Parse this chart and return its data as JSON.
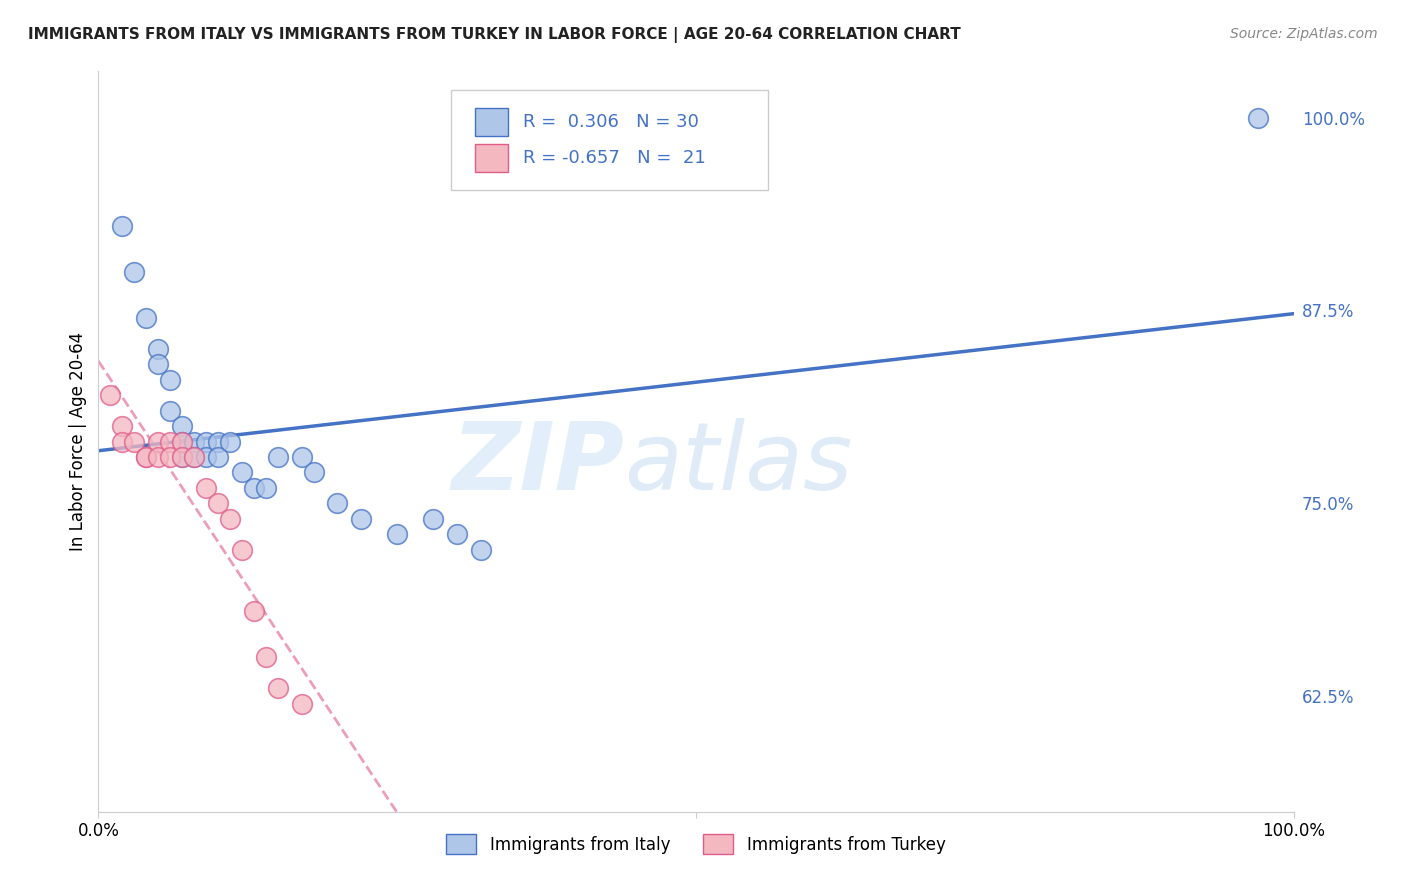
{
  "title": "IMMIGRANTS FROM ITALY VS IMMIGRANTS FROM TURKEY IN LABOR FORCE | AGE 20-64 CORRELATION CHART",
  "source": "Source: ZipAtlas.com",
  "ylabel": "In Labor Force | Age 20-64",
  "ytick_labels": [
    "62.5%",
    "75.0%",
    "87.5%",
    "100.0%"
  ],
  "ytick_values": [
    0.625,
    0.75,
    0.875,
    1.0
  ],
  "xlim": [
    0.0,
    1.0
  ],
  "ylim": [
    0.55,
    1.03
  ],
  "legend_italy_r": "0.306",
  "legend_italy_n": "30",
  "legend_turkey_r": "-0.657",
  "legend_turkey_n": "21",
  "italy_color": "#aec6e8",
  "turkey_color": "#f4b8c1",
  "italy_line_color": "#4472C4",
  "turkey_line_color": "#E05C8A",
  "italy_scatter": [
    [
      0.02,
      0.93
    ],
    [
      0.03,
      0.9
    ],
    [
      0.04,
      0.87
    ],
    [
      0.05,
      0.85
    ],
    [
      0.05,
      0.84
    ],
    [
      0.06,
      0.83
    ],
    [
      0.06,
      0.81
    ],
    [
      0.07,
      0.8
    ],
    [
      0.07,
      0.79
    ],
    [
      0.07,
      0.78
    ],
    [
      0.08,
      0.79
    ],
    [
      0.08,
      0.78
    ],
    [
      0.09,
      0.79
    ],
    [
      0.09,
      0.78
    ],
    [
      0.1,
      0.79
    ],
    [
      0.1,
      0.78
    ],
    [
      0.11,
      0.79
    ],
    [
      0.12,
      0.77
    ],
    [
      0.13,
      0.76
    ],
    [
      0.14,
      0.76
    ],
    [
      0.15,
      0.78
    ],
    [
      0.17,
      0.78
    ],
    [
      0.18,
      0.77
    ],
    [
      0.2,
      0.75
    ],
    [
      0.22,
      0.74
    ],
    [
      0.25,
      0.73
    ],
    [
      0.28,
      0.74
    ],
    [
      0.3,
      0.73
    ],
    [
      0.32,
      0.72
    ],
    [
      0.97,
      1.0
    ]
  ],
  "turkey_scatter": [
    [
      0.01,
      0.82
    ],
    [
      0.02,
      0.8
    ],
    [
      0.02,
      0.79
    ],
    [
      0.03,
      0.79
    ],
    [
      0.04,
      0.78
    ],
    [
      0.04,
      0.78
    ],
    [
      0.05,
      0.79
    ],
    [
      0.05,
      0.78
    ],
    [
      0.06,
      0.79
    ],
    [
      0.06,
      0.78
    ],
    [
      0.07,
      0.79
    ],
    [
      0.07,
      0.78
    ],
    [
      0.08,
      0.78
    ],
    [
      0.09,
      0.76
    ],
    [
      0.1,
      0.75
    ],
    [
      0.11,
      0.74
    ],
    [
      0.12,
      0.72
    ],
    [
      0.13,
      0.68
    ],
    [
      0.14,
      0.65
    ],
    [
      0.15,
      0.63
    ],
    [
      0.17,
      0.62
    ]
  ],
  "watermark_zip": "ZIP",
  "watermark_atlas": "atlas",
  "background_color": "#ffffff",
  "grid_color": "#cccccc"
}
